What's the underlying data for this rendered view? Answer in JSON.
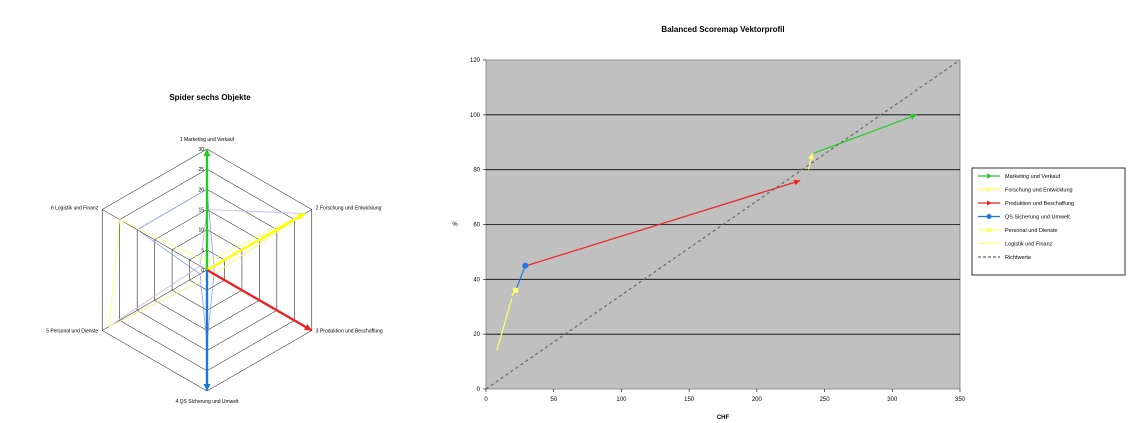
{
  "chart_data": [
    {
      "type": "radar",
      "title": "Spider sechs Objekte",
      "axes": [
        "1 Marketing und Verkauf",
        "2 Forschung und Entwicklung",
        "3 Produktion und Beschaffung",
        "4 QS Sicherung und Umwelt",
        "5 Personal und Dienste",
        "6 Logistik und Finanz"
      ],
      "scale": {
        "min": 0,
        "max": 30,
        "step": 5
      },
      "tick_labels": [
        "0",
        "5",
        "10",
        "15",
        "20",
        "25",
        "30"
      ],
      "series": [
        {
          "color": "#22cc22",
          "from": [
            0,
            0,
            0,
            0,
            0,
            0
          ],
          "to": [
            30,
            0,
            0,
            0,
            0,
            0
          ]
        },
        {
          "color": "#ffff00",
          "from": [
            0,
            0,
            0,
            0,
            0,
            0
          ],
          "to": [
            0,
            28,
            0,
            0,
            0,
            0
          ]
        },
        {
          "color": "#ee2222",
          "from": [
            0,
            0,
            0,
            0,
            0,
            0
          ],
          "to": [
            0,
            0,
            30,
            0,
            0,
            0
          ]
        },
        {
          "color": "#1f77dd",
          "from": [
            0,
            0,
            0,
            0,
            0,
            0
          ],
          "to": [
            0,
            0,
            0,
            30,
            0,
            0
          ]
        }
      ],
      "outline_series": [
        {
          "color": "#c8b4e8",
          "values": [
            15,
            28,
            2,
            2,
            28,
            2
          ]
        },
        {
          "color": "#8aa0e8",
          "values": [
            20,
            2,
            2,
            18,
            2,
            20
          ]
        },
        {
          "color": "#ffff66",
          "values": [
            2,
            28,
            2,
            2,
            28,
            25
          ]
        }
      ]
    },
    {
      "type": "line",
      "title": "Balanced Scoremap Vektorprofil",
      "xlabel": "CHF",
      "ylabel": "%",
      "xlim": [
        0,
        350
      ],
      "ylim": [
        0,
        120
      ],
      "xticks": [
        0,
        50,
        100,
        150,
        200,
        250,
        300,
        350
      ],
      "yticks": [
        0,
        20,
        40,
        60,
        80,
        100,
        120
      ],
      "grid": true,
      "legend": "right",
      "series": [
        {
          "name": "Marketing und Verkauf",
          "color": "#22cc22",
          "marker": "triangle",
          "points": [
            [
              242,
              86
            ],
            [
              318,
              100
            ]
          ]
        },
        {
          "name": "Forschung und Entwicklung",
          "color": "#ffff66",
          "marker": "triangle",
          "points": [
            [
              238,
              80
            ],
            [
              241,
              86
            ]
          ]
        },
        {
          "name": "Produktion und Beschaffung",
          "color": "#ee2222",
          "marker": "triangle",
          "points": [
            [
              30,
              45
            ],
            [
              232,
              76
            ]
          ]
        },
        {
          "name": "QS Sicherung und Umwelt",
          "color": "#1f77dd",
          "marker": "circle",
          "points": [
            [
              22,
              36
            ],
            [
              29,
              45
            ]
          ]
        },
        {
          "name": "Personal und Dienste",
          "color": "#ffff66",
          "marker": "square",
          "points": [
            [
              19,
              34
            ],
            [
              22,
              36
            ]
          ]
        },
        {
          "name": "Logistik und Finanz",
          "color": "#ffff66",
          "marker": "none",
          "points": [
            [
              8,
              14
            ],
            [
              19,
              33
            ]
          ]
        },
        {
          "name": "Richtwerte",
          "color": "#666666",
          "dash": true,
          "marker": "none",
          "points": [
            [
              0,
              0
            ],
            [
              350,
              120
            ]
          ]
        }
      ]
    }
  ]
}
